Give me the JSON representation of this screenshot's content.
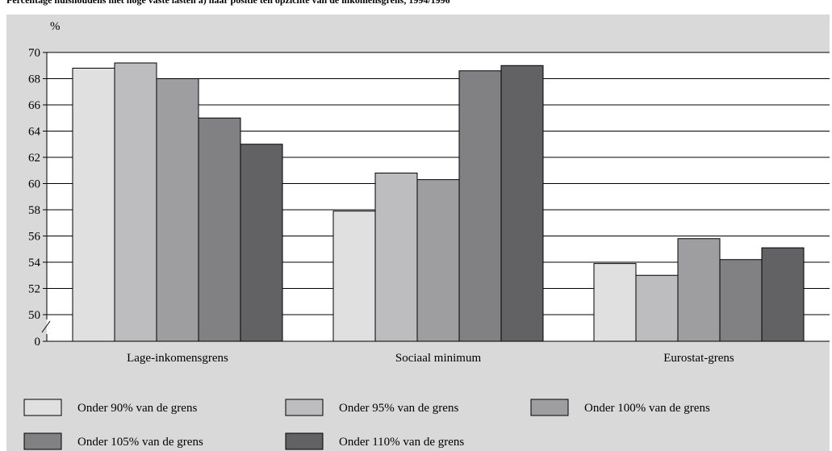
{
  "chart_data": {
    "type": "bar",
    "title": "Percentage huishoudens met hoge vaste lasten a) naar positie ten opzichte van de inkomensgrens, 1994/1996",
    "ylabel": "%",
    "xlabel": "",
    "ylim": [
      50,
      70
    ],
    "axis_break": true,
    "y_ticks": [
      "0",
      "50",
      "52",
      "54",
      "56",
      "58",
      "60",
      "62",
      "64",
      "66",
      "68",
      "70"
    ],
    "grid": true,
    "legend_position": "bottom",
    "categories": [
      "Lage-inkomensgrens",
      "Sociaal minimum",
      "Eurostat-grens"
    ],
    "series": [
      {
        "name": "Onder 90% van de grens",
        "color": "#e0e0e0",
        "values": [
          68.8,
          57.9,
          53.9
        ]
      },
      {
        "name": "Onder 95% van de grens",
        "color": "#bdbdbf",
        "values": [
          69.2,
          60.8,
          53.0
        ]
      },
      {
        "name": "Onder 100% van de grens",
        "color": "#9e9ea1",
        "values": [
          68.0,
          60.3,
          55.8
        ]
      },
      {
        "name": "Onder 105% van de grens",
        "color": "#818184",
        "values": [
          65.0,
          68.6,
          54.2
        ]
      },
      {
        "name": "Onder 110% van de grens",
        "color": "#626265",
        "values": [
          63.0,
          69.0,
          55.1
        ]
      }
    ]
  }
}
